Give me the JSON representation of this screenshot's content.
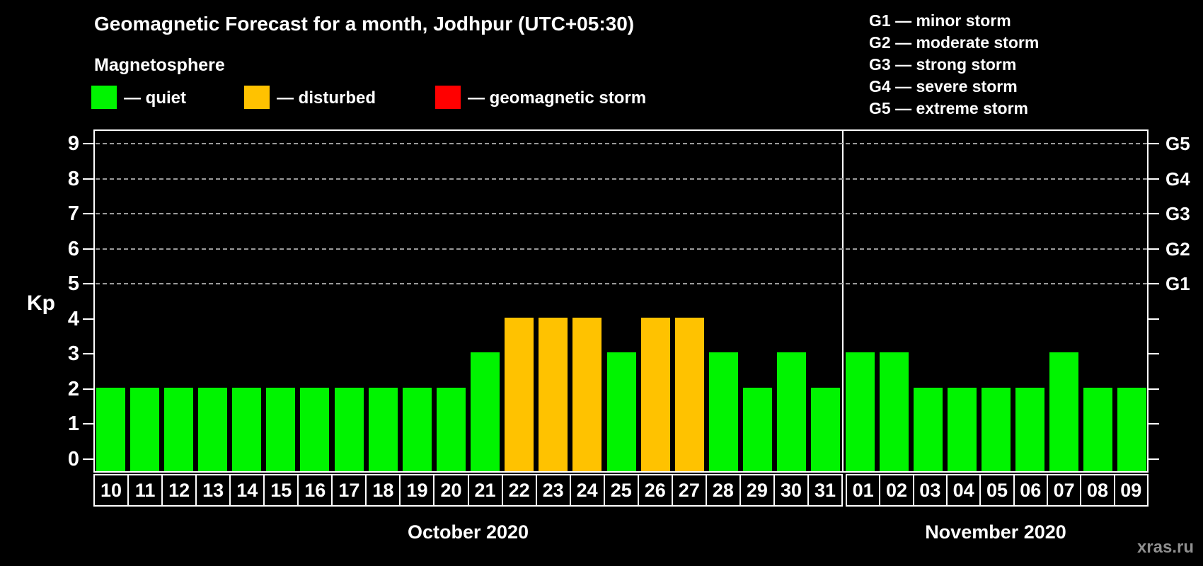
{
  "title": "Geomagnetic Forecast for a month, Jodhpur (UTC+05:30)",
  "subtitle": "Magnetosphere",
  "legend": {
    "items": [
      {
        "key": "quiet",
        "label": "— quiet",
        "color": "#00f400"
      },
      {
        "key": "disturbed",
        "label": "— disturbed",
        "color": "#ffc200"
      },
      {
        "key": "storm",
        "label": "— geomagnetic storm",
        "color": "#ff0000"
      }
    ]
  },
  "storm_scale_legend": {
    "items": [
      "G1 — minor storm",
      "G2 — moderate storm",
      "G3 — strong storm",
      "G4 — severe storm",
      "G5 — extreme storm"
    ]
  },
  "chart_data": {
    "type": "bar",
    "ylabel": "Kp",
    "ylim": [
      0,
      9
    ],
    "y_ticks": [
      0,
      1,
      2,
      3,
      4,
      5,
      6,
      7,
      8,
      9
    ],
    "right_axis_ticks": [
      {
        "label": "G1",
        "kp": 5
      },
      {
        "label": "G2",
        "kp": 6
      },
      {
        "label": "G3",
        "kp": 7
      },
      {
        "label": "G4",
        "kp": 8
      },
      {
        "label": "G5",
        "kp": 9
      }
    ],
    "gridlines_at_kp": [
      5,
      6,
      7,
      8,
      9
    ],
    "grid": "dashed",
    "colors": {
      "quiet": "#00f400",
      "disturbed": "#ffc200",
      "storm": "#ff0000"
    },
    "color_rule": "kp <= 3 quiet; kp == 4 disturbed; kp >= 5 storm",
    "months": [
      {
        "label": "October 2020",
        "categories": [
          "10",
          "11",
          "12",
          "13",
          "14",
          "15",
          "16",
          "17",
          "18",
          "19",
          "20",
          "21",
          "22",
          "23",
          "24",
          "25",
          "26",
          "27",
          "28",
          "29",
          "30",
          "31"
        ],
        "values": [
          2,
          2,
          2,
          2,
          2,
          2,
          2,
          2,
          2,
          2,
          2,
          3,
          4,
          4,
          4,
          3,
          4,
          4,
          3,
          2,
          3,
          2
        ]
      },
      {
        "label": "November 2020",
        "categories": [
          "01",
          "02",
          "03",
          "04",
          "05",
          "06",
          "07",
          "08",
          "09"
        ],
        "values": [
          3,
          3,
          2,
          2,
          2,
          2,
          3,
          2,
          2
        ]
      }
    ]
  },
  "watermark": "xras.ru"
}
